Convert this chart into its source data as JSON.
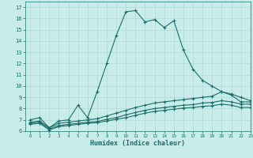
{
  "xlabel": "Humidex (Indice chaleur)",
  "xlim": [
    -0.5,
    23
  ],
  "ylim": [
    6,
    17.5
  ],
  "xticks": [
    0,
    1,
    2,
    3,
    4,
    5,
    6,
    7,
    8,
    9,
    10,
    11,
    12,
    13,
    14,
    15,
    16,
    17,
    18,
    19,
    20,
    21,
    22,
    23
  ],
  "yticks": [
    6,
    7,
    8,
    9,
    10,
    11,
    12,
    13,
    14,
    15,
    16,
    17
  ],
  "bg_color": "#c8ecea",
  "grid_color": "#b0d8d4",
  "line_color": "#1a6e6a",
  "line1_x": [
    0,
    1,
    2,
    3,
    4,
    5,
    6,
    7,
    8,
    9,
    10,
    11,
    12,
    13,
    14,
    15,
    16,
    17,
    18,
    19,
    20,
    21,
    22,
    23
  ],
  "line1_y": [
    7.0,
    7.2,
    6.3,
    6.9,
    7.0,
    8.3,
    7.2,
    9.5,
    12.0,
    14.5,
    16.6,
    16.7,
    15.7,
    15.9,
    15.2,
    15.8,
    13.2,
    11.5,
    10.5,
    10.0,
    9.5,
    9.2,
    8.6,
    8.6
  ],
  "line2_x": [
    0,
    1,
    2,
    3,
    4,
    5,
    6,
    7,
    8,
    9,
    10,
    11,
    12,
    13,
    14,
    15,
    16,
    17,
    18,
    19,
    20,
    21,
    22,
    23
  ],
  "line2_y": [
    6.8,
    6.9,
    6.3,
    6.7,
    6.8,
    6.9,
    7.0,
    7.1,
    7.35,
    7.6,
    7.85,
    8.1,
    8.3,
    8.5,
    8.6,
    8.7,
    8.8,
    8.9,
    9.0,
    9.1,
    9.5,
    9.3,
    9.0,
    8.7
  ],
  "line3_x": [
    0,
    1,
    2,
    3,
    4,
    5,
    6,
    7,
    8,
    9,
    10,
    11,
    12,
    13,
    14,
    15,
    16,
    17,
    18,
    19,
    20,
    21,
    22,
    23
  ],
  "line3_y": [
    6.7,
    6.8,
    6.2,
    6.5,
    6.6,
    6.7,
    6.8,
    6.85,
    7.05,
    7.2,
    7.45,
    7.65,
    7.85,
    8.0,
    8.1,
    8.2,
    8.3,
    8.35,
    8.5,
    8.55,
    8.7,
    8.6,
    8.4,
    8.4
  ],
  "line4_x": [
    0,
    1,
    2,
    3,
    4,
    5,
    6,
    7,
    8,
    9,
    10,
    11,
    12,
    13,
    14,
    15,
    16,
    17,
    18,
    19,
    20,
    21,
    22,
    23
  ],
  "line4_y": [
    6.6,
    6.7,
    6.1,
    6.4,
    6.5,
    6.6,
    6.7,
    6.75,
    6.9,
    7.05,
    7.2,
    7.4,
    7.6,
    7.75,
    7.85,
    7.95,
    8.05,
    8.1,
    8.2,
    8.25,
    8.4,
    8.3,
    8.1,
    8.1
  ]
}
